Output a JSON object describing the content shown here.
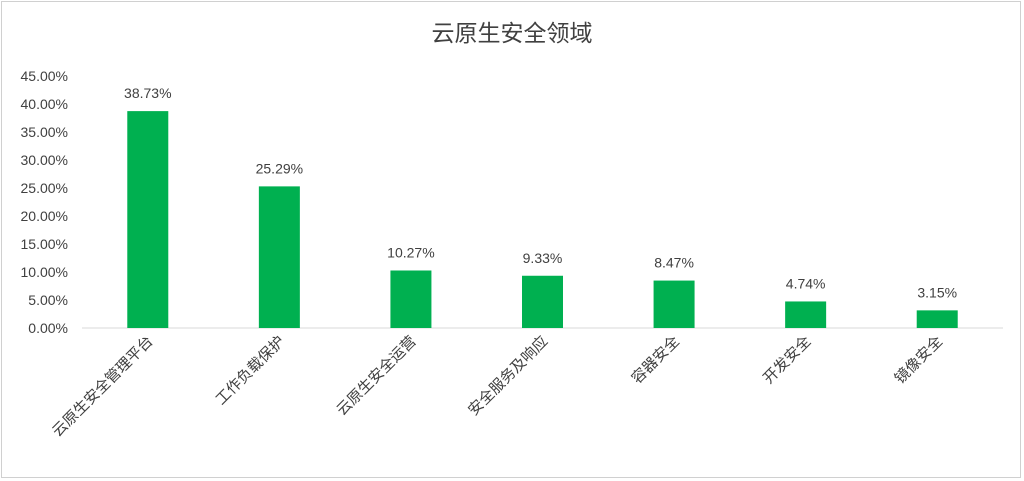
{
  "chart_data": {
    "type": "bar",
    "title": "云原生安全领域",
    "xlabel": "",
    "ylabel": "",
    "categories": [
      "云原生安全管理平台",
      "工作负载保护",
      "云原生安全运营",
      "安全服务及响应",
      "容器安全",
      "开发安全",
      "镜像安全"
    ],
    "values": [
      38.73,
      25.29,
      10.27,
      9.33,
      8.47,
      4.74,
      3.15
    ],
    "data_labels": [
      "38.73%",
      "25.29%",
      "10.27%",
      "9.33%",
      "8.47%",
      "4.74%",
      "3.15%"
    ],
    "y_ticks": [
      "0.00%",
      "5.00%",
      "10.00%",
      "15.00%",
      "20.00%",
      "25.00%",
      "30.00%",
      "35.00%",
      "40.00%",
      "45.00%"
    ],
    "ylim": [
      0,
      45
    ],
    "grid": false,
    "legend": "none",
    "bar_color": "#00b050"
  }
}
